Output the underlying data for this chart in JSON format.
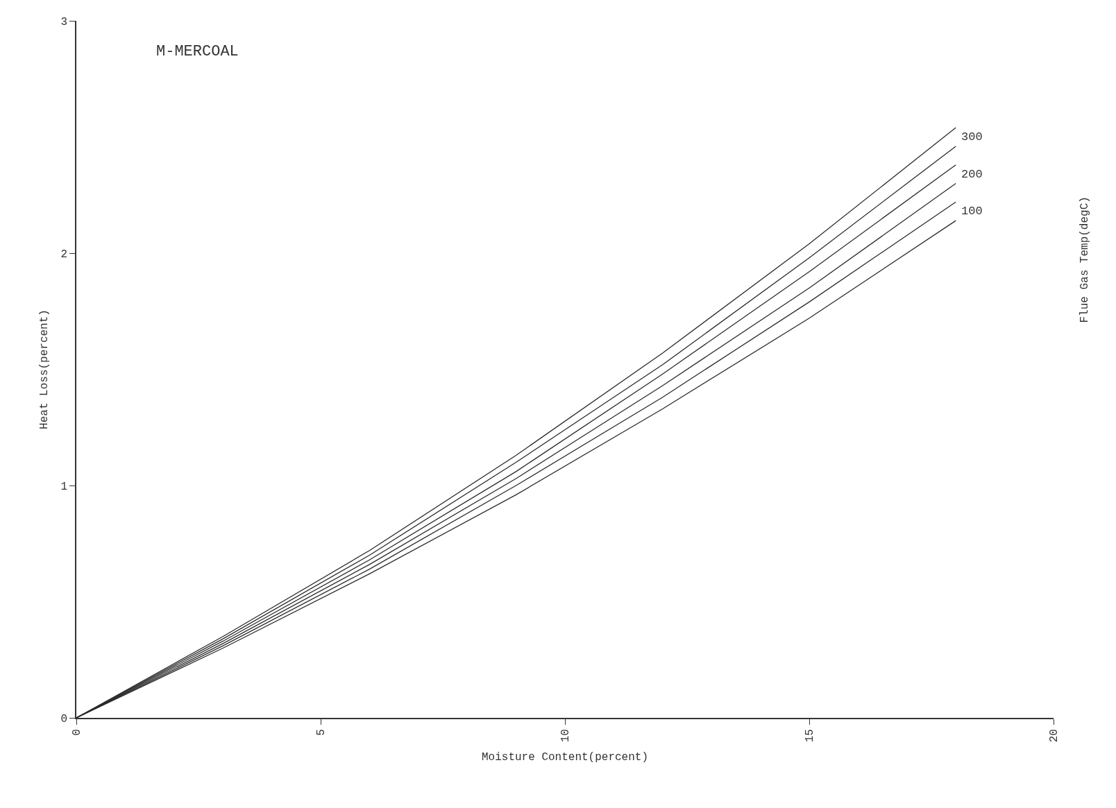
{
  "chart_data": {
    "type": "line",
    "title": "M-MERCOAL",
    "xlabel": "Moisture Content(percent)",
    "ylabel": "Heat Loss(percent)",
    "y2label": "Flue Gas Temp(degC)",
    "x": [
      0,
      3,
      6,
      9,
      12,
      15,
      18
    ],
    "series": [
      {
        "color": "#2a2a2a",
        "values": [
          0,
          0.35,
          0.72,
          1.13,
          1.57,
          2.04,
          2.54
        ]
      },
      {
        "name": "300",
        "color": "#2a2a2a",
        "values": [
          0,
          0.34,
          0.7,
          1.1,
          1.52,
          1.98,
          2.46
        ]
      },
      {
        "color": "#2a2a2a",
        "values": [
          0,
          0.33,
          0.68,
          1.06,
          1.48,
          1.92,
          2.38
        ]
      },
      {
        "name": "200",
        "color": "#2a2a2a",
        "values": [
          0,
          0.32,
          0.66,
          1.03,
          1.43,
          1.85,
          2.3
        ]
      },
      {
        "color": "#2a2a2a",
        "values": [
          0,
          0.31,
          0.64,
          1.0,
          1.38,
          1.79,
          2.22
        ]
      },
      {
        "name": "100",
        "color": "#2a2a2a",
        "values": [
          0,
          0.3,
          0.62,
          0.96,
          1.33,
          1.72,
          2.14
        ]
      }
    ],
    "xlim": [
      0,
      20
    ],
    "xticks": [
      0,
      5,
      10,
      15,
      20
    ],
    "ylim": [
      0,
      3
    ],
    "yticks": [
      0,
      1,
      2,
      3
    ],
    "legend": false,
    "marker": "none",
    "line_style": "solid"
  }
}
